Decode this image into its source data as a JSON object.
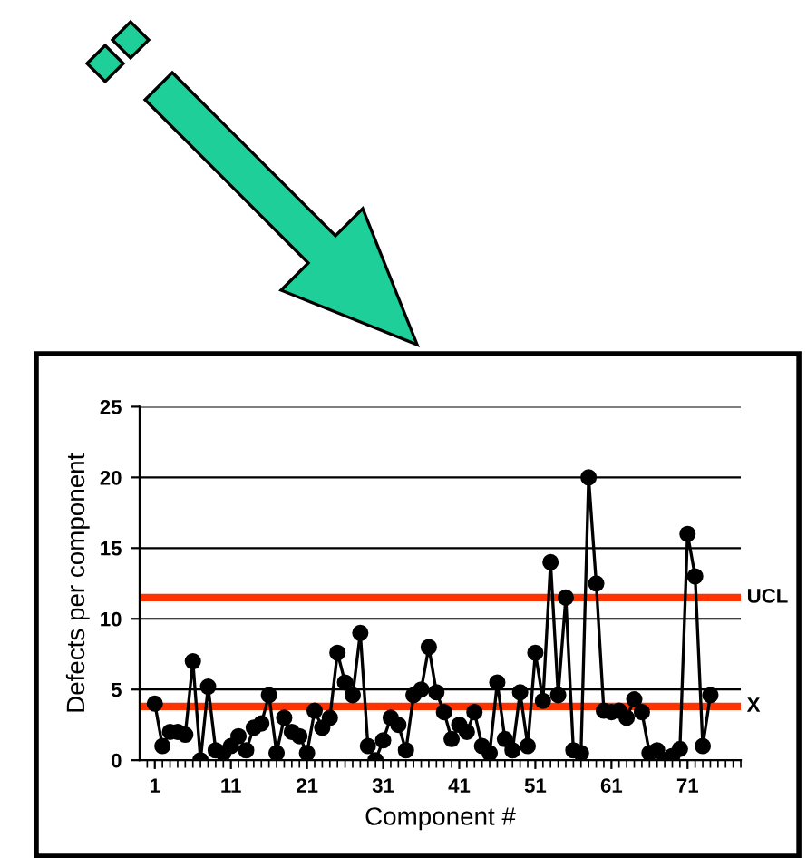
{
  "chart_data": {
    "type": "line",
    "xlabel": "Component #",
    "ylabel": "Defects per component",
    "x": [
      1,
      2,
      3,
      4,
      5,
      6,
      7,
      8,
      9,
      10,
      11,
      12,
      13,
      14,
      15,
      16,
      17,
      18,
      19,
      20,
      21,
      22,
      23,
      24,
      25,
      26,
      27,
      28,
      29,
      30,
      31,
      32,
      33,
      34,
      35,
      36,
      37,
      38,
      39,
      40,
      41,
      42,
      43,
      44,
      45,
      46,
      47,
      48,
      49,
      50,
      51,
      52,
      53,
      54,
      55,
      56,
      57,
      58,
      59,
      60,
      61,
      62,
      63,
      64,
      65,
      66,
      67,
      68,
      69,
      70,
      71,
      72,
      73,
      74
    ],
    "series": [
      {
        "color": "#000000",
        "values": [
          4,
          1,
          2,
          2,
          1.8,
          7,
          0,
          5.2,
          0.7,
          0.5,
          1,
          1.7,
          0.7,
          2.3,
          2.6,
          4.6,
          0.5,
          3,
          2,
          1.7,
          0.5,
          3.5,
          2.3,
          3,
          7.6,
          5.5,
          4.6,
          9,
          1,
          0,
          1.4,
          3,
          2.5,
          0.7,
          4.6,
          5,
          8,
          4.8,
          3.4,
          1.5,
          2.5,
          2,
          3.4,
          1,
          0.5,
          5.5,
          1.5,
          0.7,
          4.8,
          1,
          7.6,
          4.2,
          14,
          4.6,
          11.5,
          0.7,
          0.5,
          20,
          12.5,
          3.5,
          3.4,
          3.5,
          3,
          4.3,
          3.4,
          0.5,
          0.7,
          0,
          0.3,
          0.8,
          16,
          13,
          1,
          4.6
        ]
      }
    ],
    "marker": "circle",
    "line_style": "solid",
    "xlim": [
      -1,
      78
    ],
    "xticks": [
      1,
      11,
      21,
      31,
      41,
      51,
      61,
      71
    ],
    "ylim": [
      0,
      25
    ],
    "yticks": [
      0,
      5,
      10,
      15,
      20,
      25
    ],
    "grid": "y",
    "ref_lines": [
      {
        "axis": "y",
        "value": 11.5,
        "label": "UCL",
        "color": "#ff3300"
      },
      {
        "axis": "y",
        "value": 3.8,
        "label": "X",
        "color": "#ff3300"
      }
    ]
  }
}
